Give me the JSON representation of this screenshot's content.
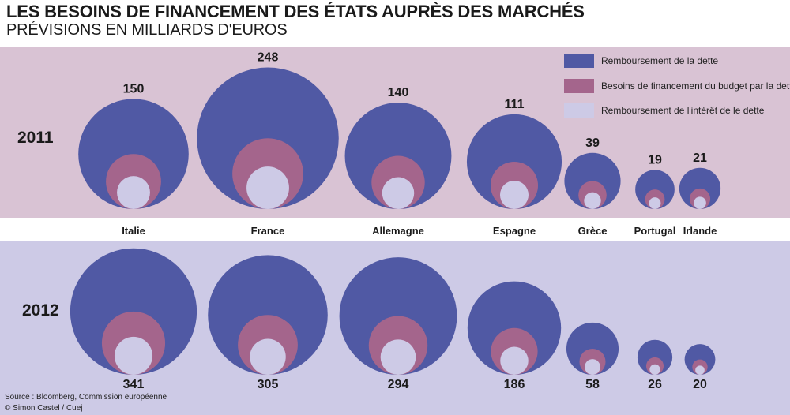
{
  "chart_data": {
    "type": "bubble",
    "title": "LES BESOINS DE FINANCEMENT DES ÉTATS AUPRÈS DES MARCHÉS",
    "subtitle": "PRÉVISIONS EN MILLIARDS D'EUROS",
    "categories": [
      "Italie",
      "France",
      "Allemagne",
      "Espagne",
      "Grèce",
      "Portugal",
      "Irlande"
    ],
    "years": [
      "2011",
      "2012"
    ],
    "series": [
      {
        "name": "Remboursement de la dette",
        "color": "#5059a4"
      },
      {
        "name": "Besoins de financement du budget par la dette",
        "color": "#a4658c"
      },
      {
        "name": "Remboursement de l'intérêt de le dette",
        "color": "#cdcae6"
      }
    ],
    "totals": {
      "2011": [
        150,
        248,
        140,
        111,
        39,
        19,
        21
      ],
      "2012": [
        341,
        305,
        294,
        186,
        58,
        26,
        20
      ]
    },
    "source": "Source : Bloomberg, Commission européenne",
    "credit": "© Simon Castel / Cuej"
  }
}
